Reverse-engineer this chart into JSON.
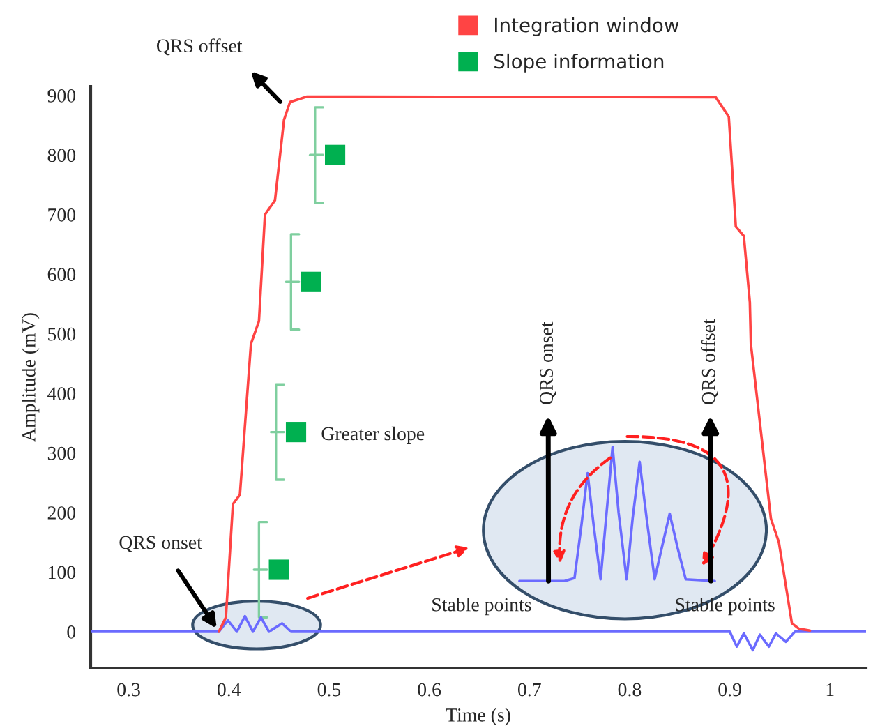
{
  "chart_data": {
    "type": "line",
    "xlabel": "Time (s)",
    "ylabel": "Amplitude (mV)",
    "xlim": [
      0.262,
      1.036
    ],
    "ylim": [
      -61,
      915
    ],
    "xticks": [
      0.3,
      0.4,
      0.5,
      0.6,
      0.7,
      0.8,
      0.9,
      {
        "value": 1.0,
        "label": "1"
      }
    ],
    "yticks": [
      0,
      100,
      200,
      300,
      400,
      500,
      600,
      700,
      800,
      900
    ],
    "grid": false,
    "legend": "top",
    "series": [
      {
        "color": "#6b6bff",
        "marker": "none",
        "x": [
          0.262,
          0.39,
          0.399,
          0.408,
          0.416,
          0.424,
          0.432,
          0.44,
          0.453,
          0.462,
          0.9,
          0.907,
          0.914,
          0.923,
          0.93,
          0.939,
          0.946,
          0.956,
          0.965,
          1.036
        ],
        "values": [
          0,
          0,
          19,
          0,
          26,
          0,
          24,
          0,
          14,
          0,
          0,
          -25,
          -3,
          -31,
          -5,
          -25,
          -3,
          -17,
          0,
          0
        ]
      },
      {
        "color": "#6b6bff",
        "marker": "none",
        "x": [
          0.69,
          0.735,
          0.745,
          0.752,
          0.758,
          0.764,
          0.771,
          0.777,
          0.783,
          0.789,
          0.797,
          0.803,
          0.81,
          0.817,
          0.825,
          0.832,
          0.84,
          0.848,
          0.856,
          0.885
        ],
        "values": [
          85,
          85,
          90,
          180,
          266,
          180,
          88,
          200,
          310,
          200,
          88,
          190,
          285,
          190,
          88,
          140,
          198,
          140,
          88,
          85
        ]
      },
      {
        "name": "Integration window",
        "color": "#ff4444",
        "marker": "none",
        "x": [
          0.39,
          0.397,
          0.404,
          0.411,
          0.422,
          0.43,
          0.436,
          0.446,
          0.455,
          0.461,
          0.478,
          0.886,
          0.899,
          0.906,
          0.914,
          0.92,
          0.921,
          0.941,
          0.949,
          0.962,
          0.969,
          0.98
        ],
        "values": [
          0,
          24,
          214,
          230,
          483,
          521,
          700,
          724,
          859,
          889,
          898,
          897,
          864,
          680,
          664,
          553,
          483,
          190,
          150,
          14,
          5,
          2
        ]
      },
      {
        "type": "scatter",
        "name": "Slope information",
        "color": "#00b050",
        "marker": "square",
        "x": [
          0.45,
          0.467,
          0.482,
          0.506
        ],
        "values": [
          104,
          335,
          587,
          800
        ]
      }
    ],
    "annotations": [
      "QRS offset",
      {
        "text": "QRS onset",
        "x": 0.39,
        "y": 0
      },
      "Greater slope",
      {
        "text": "QRS onset",
        "x": 0.719,
        "y": 85
      },
      {
        "text": "QRS offset",
        "x": 0.881,
        "y": 85
      },
      "Stable points",
      "Stable points"
    ]
  }
}
